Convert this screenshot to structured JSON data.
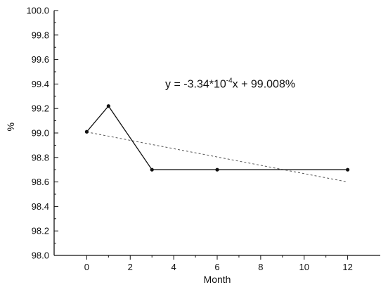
{
  "chart_data": {
    "type": "line",
    "xlabel": "Month",
    "ylabel": "%",
    "xlim": [
      -1.5,
      13.5
    ],
    "ylim": [
      98.0,
      100.0
    ],
    "x_ticks": [
      0,
      2,
      4,
      6,
      8,
      10,
      12
    ],
    "y_ticks": [
      98.0,
      98.2,
      98.4,
      98.6,
      98.8,
      99.0,
      99.2,
      99.4,
      99.6,
      99.8,
      100.0
    ],
    "x_minor_step": 1,
    "y_minor_step": 0.1,
    "grid": false,
    "series": [
      {
        "style": "solid-line-with-points",
        "color": "#111111",
        "x": [
          0,
          1,
          3,
          6,
          12
        ],
        "y": [
          99.01,
          99.22,
          98.7,
          98.7,
          98.7
        ]
      }
    ],
    "trendline": {
      "style": "dashed",
      "color": "#555555",
      "x": [
        0,
        12
      ],
      "y": [
        99.008,
        98.6
      ]
    },
    "annotation": {
      "prefix": "y = -3.34*10",
      "superscript": "-4",
      "suffix": "x + 99.008%",
      "x": 6.6,
      "y": 99.37
    }
  }
}
